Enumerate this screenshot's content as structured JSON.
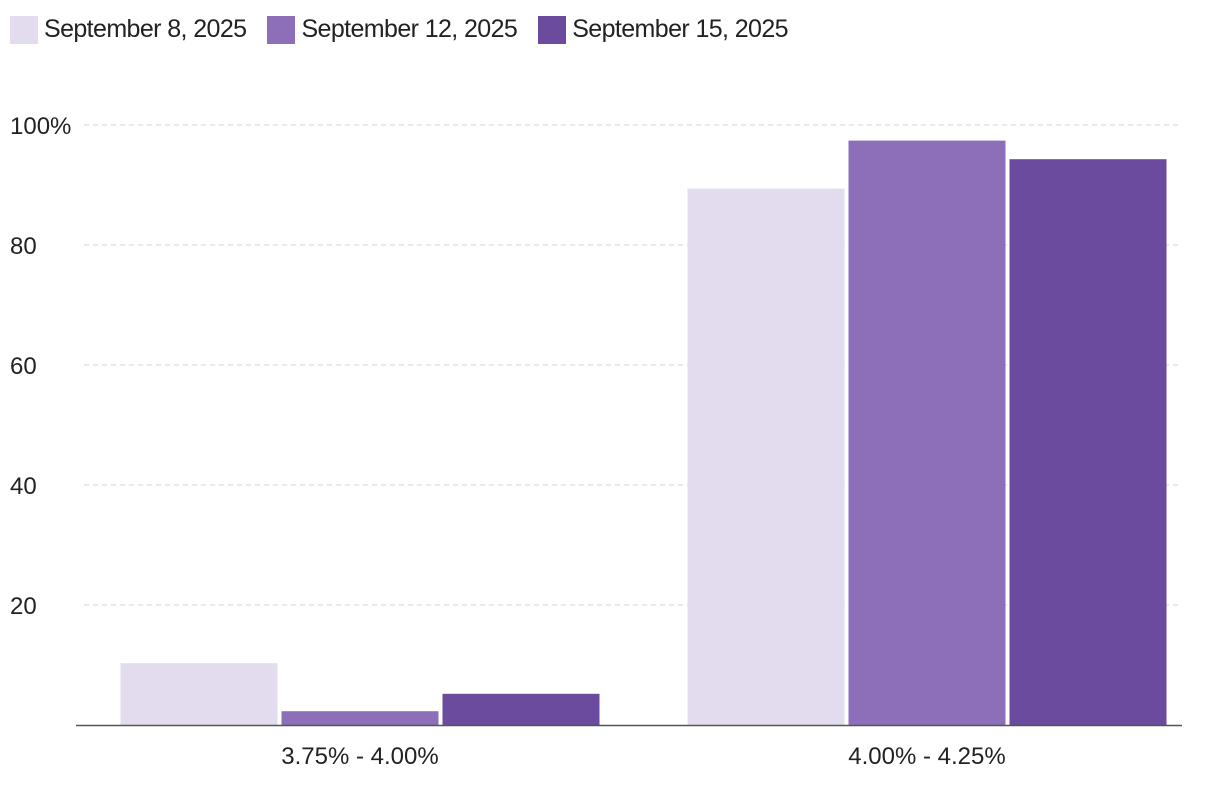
{
  "chart_data": {
    "type": "bar",
    "categories": [
      "3.75% - 4.00%",
      "4.00% - 4.25%"
    ],
    "series": [
      {
        "name": "September 8, 2025",
        "color": "#e2dcee",
        "values": [
          10.3,
          89.4
        ]
      },
      {
        "name": "September 12, 2025",
        "color": "#8c6fb8",
        "values": [
          2.3,
          97.4
        ]
      },
      {
        "name": "September 15, 2025",
        "color": "#6b4b9e",
        "values": [
          5.2,
          94.3
        ]
      }
    ],
    "ylim": [
      0,
      100
    ],
    "yticks": [
      20,
      40,
      60,
      80,
      100
    ],
    "ytick_labels": [
      "20",
      "40",
      "60",
      "80",
      "100%"
    ],
    "grid": true,
    "legend_position": "top-left",
    "title": "",
    "xlabel": "",
    "ylabel": ""
  }
}
